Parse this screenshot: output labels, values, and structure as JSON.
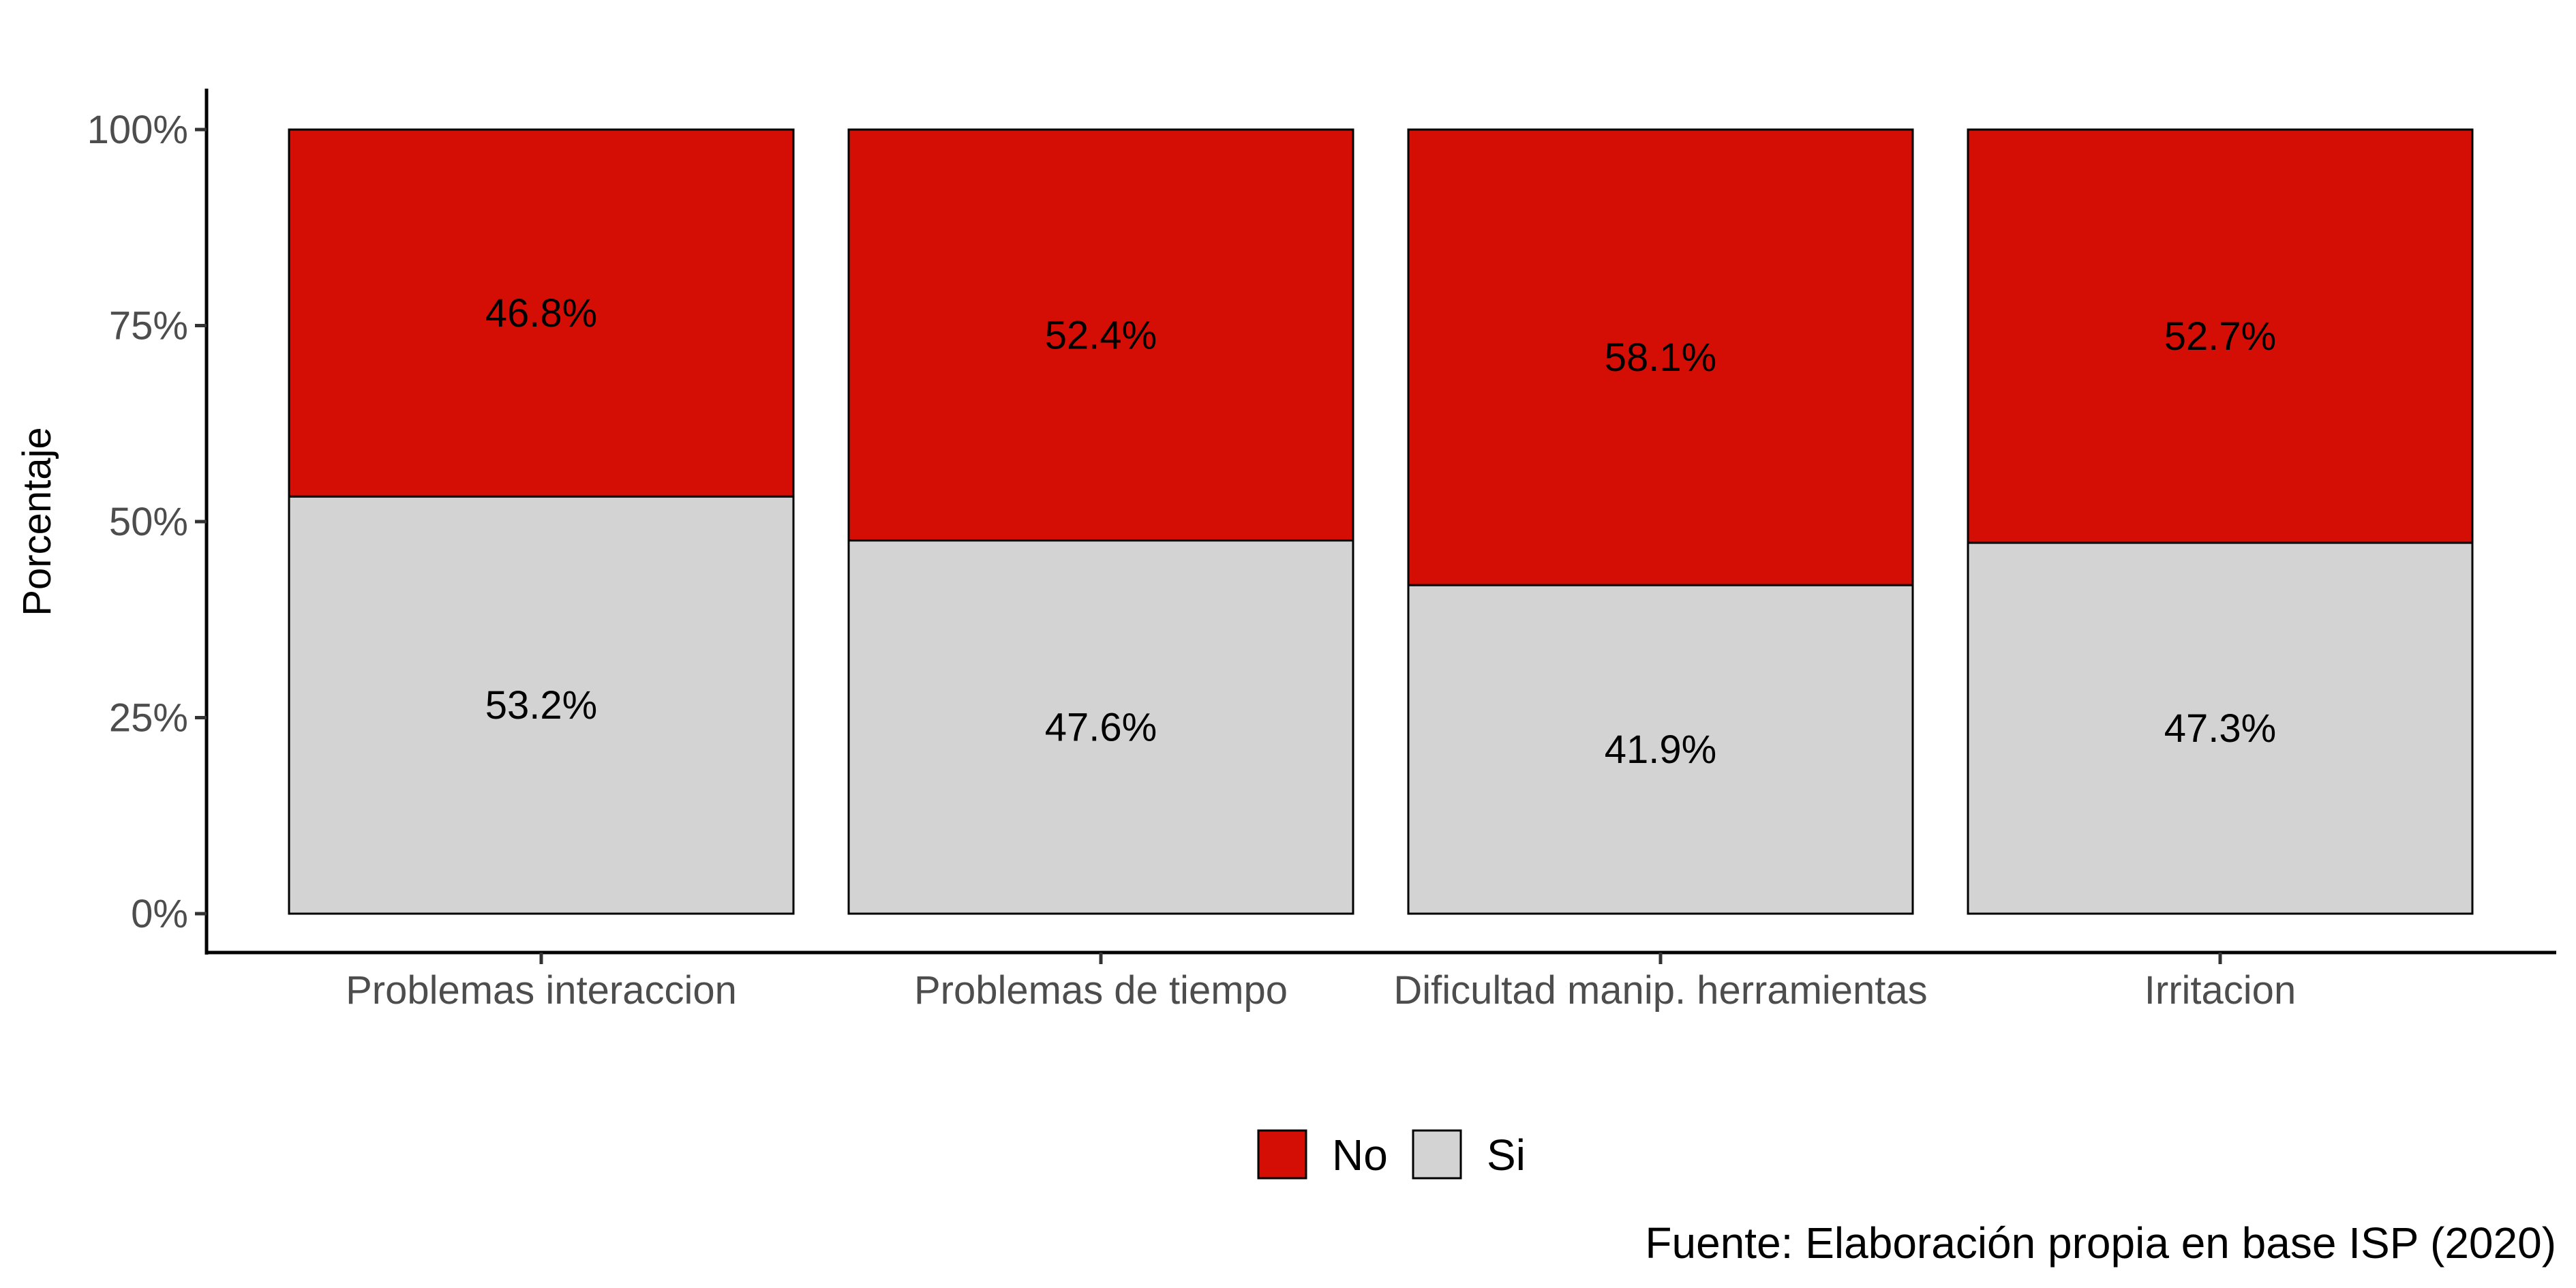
{
  "chart_data": {
    "type": "bar",
    "stacked": true,
    "categories": [
      "Problemas interaccion",
      "Problemas de tiempo",
      "Dificultad manip. herramientas",
      "Irritacion"
    ],
    "series": [
      {
        "name": "No",
        "values": [
          46.8,
          52.4,
          58.1,
          52.7
        ],
        "labels": [
          "46.8%",
          "52.4%",
          "58.1%",
          "52.7%"
        ],
        "color": "#d40e04"
      },
      {
        "name": "Si",
        "values": [
          53.2,
          47.6,
          41.9,
          47.3
        ],
        "labels": [
          "53.2%",
          "47.6%",
          "41.9%",
          "47.3%"
        ],
        "color": "#d3d3d3"
      }
    ],
    "ylabel": "Porcentaje",
    "xlabel": "",
    "ylim": [
      0,
      100
    ],
    "yticks": [
      "0%",
      "25%",
      "50%",
      "75%",
      "100%"
    ],
    "ytick_values": [
      0,
      25,
      50,
      75,
      100
    ],
    "grid": false,
    "legend_position": "bottom",
    "caption": "Fuente: Elaboración propia en base ISP (2020)"
  }
}
